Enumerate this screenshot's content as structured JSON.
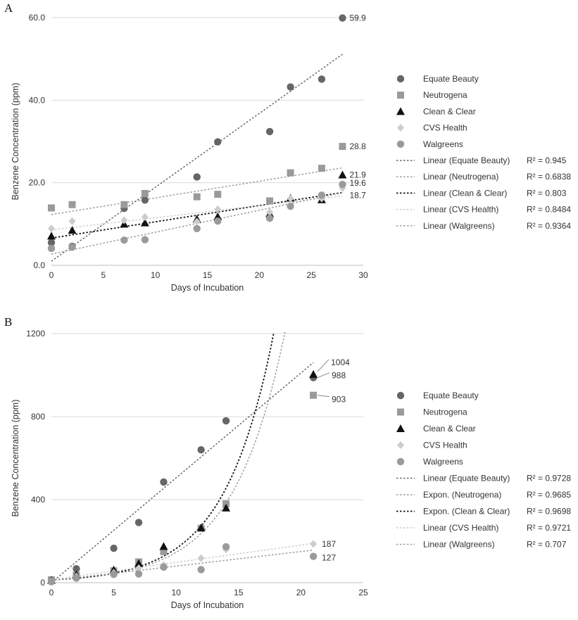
{
  "panels": [
    "A",
    "B"
  ],
  "chart_data": [
    {
      "type": "scatter",
      "panel": "A",
      "xlabel": "Days of Incubation",
      "ylabel": "Benzene Concentration (ppm)",
      "xlim": [
        0,
        30
      ],
      "ylim": [
        0,
        60
      ],
      "xticks": [
        "0",
        "5",
        "10",
        "15",
        "20",
        "25",
        "30"
      ],
      "yticks": [
        "0.0",
        "20.0",
        "40.0",
        "60.0"
      ],
      "grid": "horizontal",
      "legend_position": "right",
      "series": [
        {
          "name": "Equate Beauty",
          "marker": "circle",
          "color": "#666666",
          "x": [
            0,
            2,
            7,
            9,
            14,
            16,
            21,
            23,
            26,
            28
          ],
          "y": [
            5.5,
            4.6,
            13.8,
            15.8,
            21.4,
            29.9,
            32.4,
            43.2,
            45.1,
            59.9
          ]
        },
        {
          "name": "Neutrogena",
          "marker": "square",
          "color": "#9a9a9a",
          "x": [
            0,
            2,
            7,
            9,
            14,
            16,
            21,
            23,
            26,
            28
          ],
          "y": [
            13.9,
            14.7,
            14.7,
            17.4,
            16.6,
            17.2,
            15.6,
            22.4,
            23.5,
            28.8
          ]
        },
        {
          "name": "Clean & Clear",
          "marker": "triangle",
          "color": "#111111",
          "x": [
            0,
            2,
            7,
            9,
            14,
            16,
            21,
            23,
            26,
            28
          ],
          "y": [
            7.1,
            8.5,
            10.0,
            10.3,
            11.2,
            11.8,
            12.5,
            16.3,
            15.9,
            21.9
          ]
        },
        {
          "name": "CVS Health",
          "marker": "diamond",
          "color": "#cccccc",
          "x": [
            0,
            2,
            7,
            9,
            14,
            16,
            21,
            23,
            26,
            28
          ],
          "y": [
            8.9,
            10.7,
            10.9,
            11.7,
            10.6,
            13.6,
            12.9,
            16.2,
            16.2,
            18.7
          ]
        },
        {
          "name": "Walgreens",
          "marker": "circle",
          "color": "#9a9a9a",
          "x": [
            0,
            2,
            7,
            9,
            14,
            16,
            21,
            23,
            26,
            28
          ],
          "y": [
            4.1,
            4.4,
            6.1,
            6.2,
            8.9,
            10.7,
            11.4,
            14.3,
            17.0,
            19.6
          ]
        }
      ],
      "trendlines": [
        {
          "name": "Linear (Equate Beauty)",
          "r2": "R² = 0.945",
          "kind": "linear",
          "color": "#666666",
          "x0": 0,
          "x1": 28,
          "slope": 1.79,
          "intercept": 1.0
        },
        {
          "name": "Linear (Neutrogena)",
          "r2": "R² = 0.6838",
          "kind": "linear",
          "color": "#9a9a9a",
          "x0": 0,
          "x1": 28,
          "slope": 0.404,
          "intercept": 12.3
        },
        {
          "name": "Linear (Clean & Clear)",
          "r2": "R² = 0.803",
          "kind": "linear",
          "color": "#111111",
          "x0": 0,
          "x1": 28,
          "slope": 0.394,
          "intercept": 6.6
        },
        {
          "name": "Linear (CVS Health)",
          "r2": "R² = 0.8484",
          "kind": "linear",
          "color": "#cccccc",
          "x0": 0,
          "x1": 28,
          "slope": 0.293,
          "intercept": 8.6
        },
        {
          "name": "Linear (Walgreens)",
          "r2": "R² = 0.9364",
          "kind": "linear",
          "color": "#9a9a9a",
          "x0": 0,
          "x1": 28,
          "slope": 0.532,
          "intercept": 2.7
        }
      ],
      "annotations": [
        {
          "text": "59.9",
          "series": 0,
          "index": 9
        },
        {
          "text": "28.8",
          "series": 1,
          "index": 9
        },
        {
          "text": "21.9",
          "series": 2,
          "index": 9
        },
        {
          "text": "19.6",
          "series": 4,
          "index": 9
        },
        {
          "text": "18.7",
          "series": 3,
          "index": 9
        }
      ]
    },
    {
      "type": "scatter",
      "panel": "B",
      "xlabel": "Days of Incubation",
      "ylabel": "Benzene Concentration (ppm)",
      "xlim": [
        0,
        25
      ],
      "ylim": [
        0,
        1200
      ],
      "xticks": [
        "0",
        "5",
        "10",
        "15",
        "20",
        "25"
      ],
      "yticks": [
        "0",
        "400",
        "800",
        "1200"
      ],
      "grid": "horizontal",
      "legend_position": "right",
      "series": [
        {
          "name": "Equate Beauty",
          "marker": "circle",
          "color": "#666666",
          "x": [
            0,
            2,
            5,
            7,
            9,
            12,
            14,
            21
          ],
          "y": [
            12,
            67,
            166,
            290,
            485,
            640,
            780,
            988
          ]
        },
        {
          "name": "Neutrogena",
          "marker": "square",
          "color": "#9a9a9a",
          "x": [
            0,
            2,
            5,
            7,
            9,
            12,
            14,
            21
          ],
          "y": [
            14,
            36,
            57,
            100,
            150,
            262,
            380,
            903
          ]
        },
        {
          "name": "Clean & Clear",
          "marker": "triangle",
          "color": "#111111",
          "x": [
            0,
            2,
            5,
            7,
            9,
            12,
            14,
            21
          ],
          "y": [
            12,
            39,
            62,
            93,
            175,
            265,
            360,
            1004
          ]
        },
        {
          "name": "CVS Health",
          "marker": "diamond",
          "color": "#cccccc",
          "x": [
            0,
            2,
            5,
            7,
            9,
            12,
            14,
            21
          ],
          "y": [
            8,
            30,
            48,
            70,
            86,
            118,
            160,
            187
          ]
        },
        {
          "name": "Walgreens",
          "marker": "circle",
          "color": "#9a9a9a",
          "x": [
            0,
            2,
            5,
            7,
            9,
            12,
            14,
            21
          ],
          "y": [
            5,
            22,
            40,
            42,
            75,
            63,
            173,
            127
          ]
        }
      ],
      "trendlines": [
        {
          "name": "Linear (Equate Beauty)",
          "r2": "R² = 0.9728",
          "kind": "linear",
          "color": "#666666",
          "x0": 0,
          "x1": 21,
          "slope": 50.5,
          "intercept": 0
        },
        {
          "name": "Expon. (Neutrogena)",
          "r2": "R² = 0.9685",
          "kind": "exp",
          "color": "#9a9a9a",
          "x0": 0,
          "x1": 21,
          "a": 13,
          "b": 0.242
        },
        {
          "name": "Expon. (Clean & Clear)",
          "r2": "R² = 0.9698",
          "kind": "exp",
          "color": "#111111",
          "x0": 0,
          "x1": 21,
          "a": 13,
          "b": 0.254
        },
        {
          "name": "Linear (CVS Health)",
          "r2": "R² = 0.9721",
          "kind": "linear",
          "color": "#cccccc",
          "x0": 0,
          "x1": 21,
          "slope": 8.3,
          "intercept": 15
        },
        {
          "name": "Linear (Walgreens)",
          "r2": "R² = 0.707",
          "kind": "linear",
          "color": "#9a9a9a",
          "x0": 0,
          "x1": 21,
          "slope": 7.0,
          "intercept": 10
        }
      ],
      "annotations": [
        {
          "text": "1004",
          "series": 2,
          "index": 7
        },
        {
          "text": "988",
          "series": 0,
          "index": 7
        },
        {
          "text": "903",
          "series": 1,
          "index": 7
        },
        {
          "text": "187",
          "series": 3,
          "index": 7
        },
        {
          "text": "127",
          "series": 4,
          "index": 7
        }
      ]
    }
  ]
}
